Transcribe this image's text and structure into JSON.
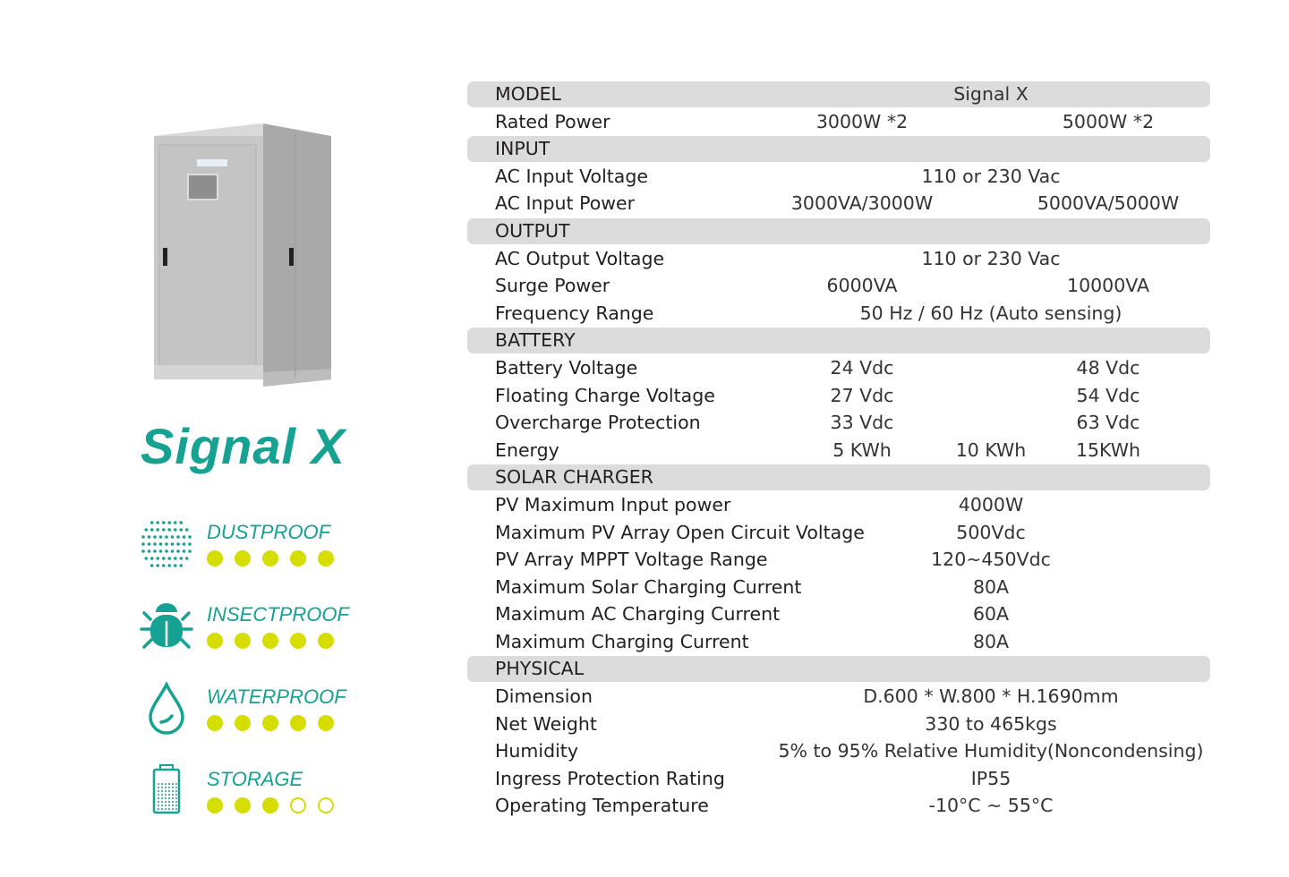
{
  "product": {
    "name": "Signal X",
    "image": "cabinet-photo"
  },
  "colors": {
    "accent": "#15a293",
    "rating_dot": "#d6dd00",
    "section_bar": "#dcdcdc"
  },
  "features": [
    {
      "label": "DUSTPROOF",
      "icon": "dust-dots-icon",
      "rating": 5,
      "max": 5
    },
    {
      "label": "INSECTPROOF",
      "icon": "bug-icon",
      "rating": 5,
      "max": 5
    },
    {
      "label": "WATERPROOF",
      "icon": "water-drop-icon",
      "rating": 5,
      "max": 5
    },
    {
      "label": "STORAGE",
      "icon": "battery-icon",
      "rating": 3,
      "max": 5
    }
  ],
  "specs": [
    {
      "type": "header",
      "label": "MODEL",
      "values": [
        "Signal X"
      ]
    },
    {
      "type": "row",
      "label": "Rated Power",
      "values": [
        "3000W *2",
        "5000W *2"
      ]
    },
    {
      "type": "header",
      "label": "INPUT",
      "values": []
    },
    {
      "type": "row",
      "label": "AC Input Voltage",
      "values": [
        "110 or 230 Vac"
      ]
    },
    {
      "type": "row",
      "label": "AC Input Power",
      "values": [
        "3000VA/3000W",
        "5000VA/5000W"
      ]
    },
    {
      "type": "header",
      "label": "OUTPUT",
      "values": []
    },
    {
      "type": "row",
      "label": "AC Output Voltage",
      "values": [
        "110 or 230 Vac"
      ]
    },
    {
      "type": "row",
      "label": "Surge Power",
      "values": [
        "6000VA",
        "10000VA"
      ]
    },
    {
      "type": "row",
      "label": "Frequency Range",
      "values": [
        "50 Hz / 60 Hz (Auto sensing)"
      ]
    },
    {
      "type": "header",
      "label": "BATTERY",
      "values": []
    },
    {
      "type": "row",
      "label": "Battery Voltage",
      "values": [
        "24 Vdc",
        "48 Vdc"
      ]
    },
    {
      "type": "row",
      "label": "Floating Charge Voltage",
      "values": [
        "27 Vdc",
        "54 Vdc"
      ]
    },
    {
      "type": "row",
      "label": "Overcharge Protection",
      "values": [
        "33 Vdc",
        "63 Vdc"
      ]
    },
    {
      "type": "row",
      "label": "Energy",
      "values": [
        "5 KWh",
        "10 KWh",
        "15KWh"
      ]
    },
    {
      "type": "header",
      "label": "SOLAR CHARGER",
      "values": []
    },
    {
      "type": "row",
      "label": "PV Maximum Input power",
      "values": [
        "4000W"
      ]
    },
    {
      "type": "row",
      "label": "Maximum PV Array Open Circuit Voltage",
      "values": [
        "500Vdc"
      ]
    },
    {
      "type": "row",
      "label": "PV Array MPPT Voltage Range",
      "values": [
        "120~450Vdc"
      ]
    },
    {
      "type": "row",
      "label": "Maximum Solar Charging Current",
      "values": [
        "80A"
      ]
    },
    {
      "type": "row",
      "label": "Maximum AC Charging Current",
      "values": [
        "60A"
      ]
    },
    {
      "type": "row",
      "label": "Maximum Charging Current",
      "values": [
        "80A"
      ]
    },
    {
      "type": "header",
      "label": "PHYSICAL",
      "values": []
    },
    {
      "type": "row",
      "label": "Dimension",
      "values": [
        "D.600 * W.800 * H.1690mm"
      ]
    },
    {
      "type": "row",
      "label": "Net Weight",
      "values": [
        "330 to 465kgs"
      ]
    },
    {
      "type": "row",
      "label": "Humidity",
      "values": [
        "5% to 95% Relative Humidity(Noncondensing)"
      ]
    },
    {
      "type": "row",
      "label": "Ingress Protection Rating",
      "values": [
        "IP55"
      ]
    },
    {
      "type": "row",
      "label": "Operating Temperature",
      "values": [
        "-10°C ~ 55°C"
      ]
    }
  ]
}
